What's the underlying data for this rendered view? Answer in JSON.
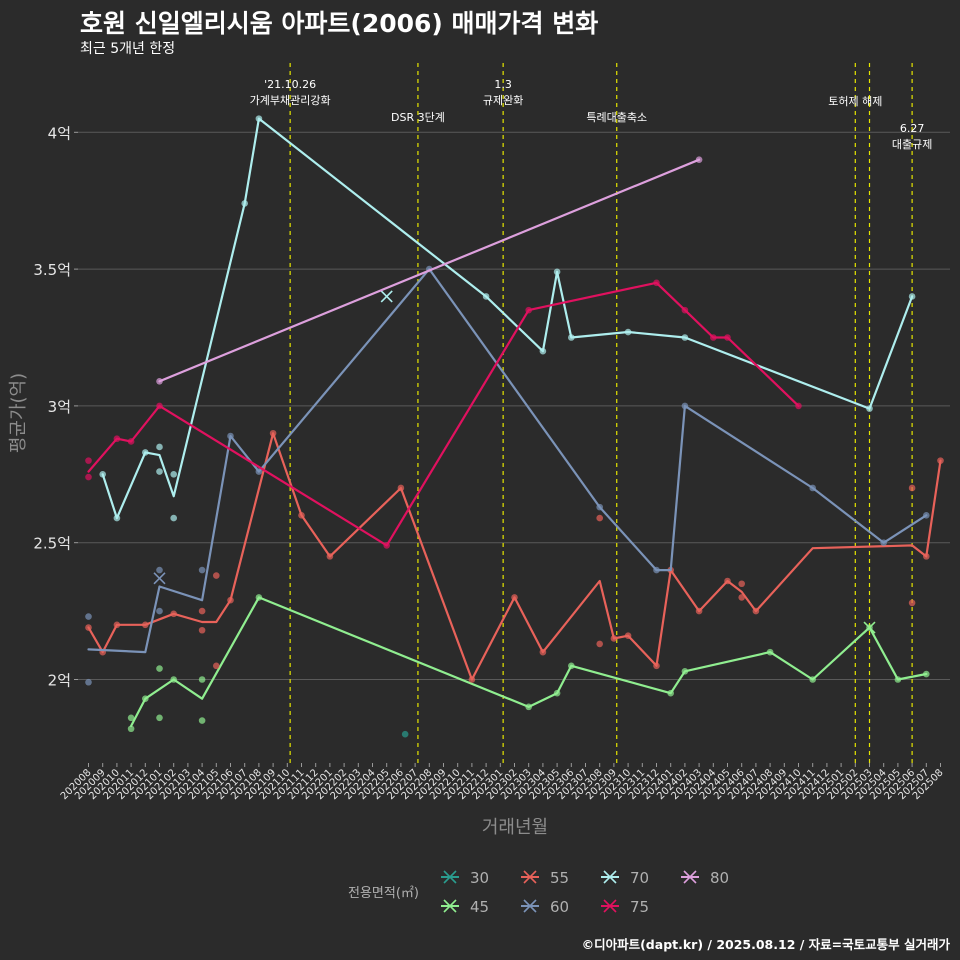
{
  "chart_data": {
    "type": "line",
    "title": "호원 신일엘리시움 아파트(2006) 매매가격 변화",
    "subtitle": "최근 5개년 한정",
    "xlabel": "거래년월",
    "ylabel": "평균가(억)",
    "caption": "©디아파트(dapt.kr) / 2025.08.12 / 자료=국토교통부 실거래가",
    "legend_title": "전용면적(㎡)",
    "legend_position": "bottom",
    "ylim": [
      1.68,
      4.25
    ],
    "yticks": [
      2,
      2.5,
      3,
      3.5,
      4
    ],
    "ytick_labels": [
      "2억",
      "2.5억",
      "3억",
      "3.5억",
      "4억"
    ],
    "x_categories": [
      "202008",
      "202009",
      "202010",
      "202011",
      "202012",
      "202101",
      "202102",
      "202103",
      "202104",
      "202105",
      "202106",
      "202107",
      "202108",
      "202109",
      "202110",
      "202111",
      "202112",
      "202201",
      "202202",
      "202203",
      "202204",
      "202205",
      "202206",
      "202207",
      "202208",
      "202209",
      "202210",
      "202211",
      "202212",
      "202301",
      "202302",
      "202303",
      "202304",
      "202305",
      "202306",
      "202307",
      "202308",
      "202309",
      "202310",
      "202311",
      "202312",
      "202401",
      "202402",
      "202403",
      "202404",
      "202405",
      "202406",
      "202407",
      "202408",
      "202409",
      "202410",
      "202411",
      "202412",
      "202501",
      "202502",
      "202503",
      "202504",
      "202505",
      "202506",
      "202507",
      "202508"
    ],
    "events": [
      {
        "x": 14.2,
        "label": "'21.10.26\n가계부채관리강화",
        "level": 0
      },
      {
        "x": 23.2,
        "label": "DSR 3단계",
        "level": 2
      },
      {
        "x": 29.2,
        "label": "1.3\n규제완화",
        "level": 0
      },
      {
        "x": 37.2,
        "label": "특례대출축소",
        "level": 2
      },
      {
        "x": 54.0,
        "label": "토허제 해제",
        "level": 1
      },
      {
        "x": 55.0,
        "label": "",
        "level": 1
      },
      {
        "x": 58.0,
        "label": "6.27\n대출규제",
        "level": 3
      }
    ],
    "series": [
      {
        "name": "30",
        "color": "#2a9d8f",
        "points": [
          {
            "x": 22.3,
            "y": 1.8
          }
        ],
        "line": []
      },
      {
        "name": "45",
        "color": "#90ee90",
        "points": [
          {
            "x": 3,
            "y": 1.86
          },
          {
            "x": 3,
            "y": 1.82
          },
          {
            "x": 4,
            "y": 1.93
          },
          {
            "x": 5,
            "y": 2.04
          },
          {
            "x": 5,
            "y": 1.86
          },
          {
            "x": 6,
            "y": 2.0
          },
          {
            "x": 8,
            "y": 2.0
          },
          {
            "x": 8,
            "y": 1.85
          },
          {
            "x": 12,
            "y": 2.3
          },
          {
            "x": 31,
            "y": 1.9
          },
          {
            "x": 33,
            "y": 1.95
          },
          {
            "x": 34,
            "y": 2.05
          },
          {
            "x": 41,
            "y": 1.95
          },
          {
            "x": 42,
            "y": 2.03
          },
          {
            "x": 48,
            "y": 2.1
          },
          {
            "x": 51,
            "y": 2.0
          },
          {
            "x": 55,
            "y": 2.19
          },
          {
            "x": 57,
            "y": 2.0
          },
          {
            "x": 59,
            "y": 2.02
          }
        ],
        "line": [
          {
            "x": 3,
            "y": 1.83
          },
          {
            "x": 4,
            "y": 1.93
          },
          {
            "x": 6,
            "y": 2.0
          },
          {
            "x": 8,
            "y": 1.93
          },
          {
            "x": 12,
            "y": 2.3
          },
          {
            "x": 31,
            "y": 1.9
          },
          {
            "x": 33,
            "y": 1.95
          },
          {
            "x": 34,
            "y": 2.05
          },
          {
            "x": 41,
            "y": 1.95
          },
          {
            "x": 42,
            "y": 2.03
          },
          {
            "x": 48,
            "y": 2.1
          },
          {
            "x": 51,
            "y": 2.0
          },
          {
            "x": 55,
            "y": 2.19
          },
          {
            "x": 57,
            "y": 2.0
          },
          {
            "x": 59,
            "y": 2.02
          }
        ],
        "cross": [
          {
            "x": 55,
            "y": 2.19
          }
        ]
      },
      {
        "name": "55",
        "color": "#e8625a",
        "points": [
          {
            "x": 0,
            "y": 2.19
          },
          {
            "x": 1,
            "y": 2.1
          },
          {
            "x": 2,
            "y": 2.2
          },
          {
            "x": 4,
            "y": 2.2
          },
          {
            "x": 6,
            "y": 2.24
          },
          {
            "x": 8,
            "y": 2.25
          },
          {
            "x": 8,
            "y": 2.18
          },
          {
            "x": 9,
            "y": 2.38
          },
          {
            "x": 9,
            "y": 2.05
          },
          {
            "x": 10,
            "y": 2.29
          },
          {
            "x": 13,
            "y": 2.9
          },
          {
            "x": 15,
            "y": 2.6
          },
          {
            "x": 17,
            "y": 2.45
          },
          {
            "x": 22,
            "y": 2.7
          },
          {
            "x": 27,
            "y": 2.0
          },
          {
            "x": 30,
            "y": 2.3
          },
          {
            "x": 32,
            "y": 2.1
          },
          {
            "x": 36,
            "y": 2.59
          },
          {
            "x": 36,
            "y": 2.13
          },
          {
            "x": 37,
            "y": 2.15
          },
          {
            "x": 38,
            "y": 2.16
          },
          {
            "x": 40,
            "y": 2.05
          },
          {
            "x": 41,
            "y": 2.4
          },
          {
            "x": 43,
            "y": 2.25
          },
          {
            "x": 45,
            "y": 2.36
          },
          {
            "x": 46,
            "y": 2.35
          },
          {
            "x": 46,
            "y": 2.3
          },
          {
            "x": 47,
            "y": 2.25
          },
          {
            "x": 58,
            "y": 2.7
          },
          {
            "x": 58,
            "y": 2.28
          },
          {
            "x": 59,
            "y": 2.45
          },
          {
            "x": 60,
            "y": 2.8
          }
        ],
        "line": [
          {
            "x": 0,
            "y": 2.19
          },
          {
            "x": 1,
            "y": 2.1
          },
          {
            "x": 2,
            "y": 2.2
          },
          {
            "x": 4,
            "y": 2.2
          },
          {
            "x": 6,
            "y": 2.24
          },
          {
            "x": 8,
            "y": 2.21
          },
          {
            "x": 9,
            "y": 2.21
          },
          {
            "x": 10,
            "y": 2.29
          },
          {
            "x": 13,
            "y": 2.9
          },
          {
            "x": 15,
            "y": 2.6
          },
          {
            "x": 17,
            "y": 2.45
          },
          {
            "x": 22,
            "y": 2.7
          },
          {
            "x": 27,
            "y": 2.0
          },
          {
            "x": 30,
            "y": 2.3
          },
          {
            "x": 32,
            "y": 2.1
          },
          {
            "x": 36,
            "y": 2.36
          },
          {
            "x": 37,
            "y": 2.15
          },
          {
            "x": 38,
            "y": 2.16
          },
          {
            "x": 40,
            "y": 2.05
          },
          {
            "x": 41,
            "y": 2.4
          },
          {
            "x": 43,
            "y": 2.25
          },
          {
            "x": 45,
            "y": 2.36
          },
          {
            "x": 46,
            "y": 2.32
          },
          {
            "x": 47,
            "y": 2.25
          },
          {
            "x": 51,
            "y": 2.48
          },
          {
            "x": 58,
            "y": 2.49
          },
          {
            "x": 59,
            "y": 2.45
          },
          {
            "x": 60,
            "y": 2.8
          }
        ]
      },
      {
        "name": "60",
        "color": "#7b93b8",
        "points": [
          {
            "x": 0,
            "y": 2.23
          },
          {
            "x": 0,
            "y": 1.99
          },
          {
            "x": 5,
            "y": 2.4
          },
          {
            "x": 5,
            "y": 2.25
          },
          {
            "x": 8,
            "y": 2.4
          },
          {
            "x": 10,
            "y": 2.89
          },
          {
            "x": 12,
            "y": 2.76
          },
          {
            "x": 24,
            "y": 3.5
          },
          {
            "x": 36,
            "y": 2.63
          },
          {
            "x": 40,
            "y": 2.4
          },
          {
            "x": 42,
            "y": 3.0
          },
          {
            "x": 51,
            "y": 2.7
          },
          {
            "x": 56,
            "y": 2.5
          },
          {
            "x": 59,
            "y": 2.6
          }
        ],
        "line": [
          {
            "x": 0,
            "y": 2.11
          },
          {
            "x": 4,
            "y": 2.1
          },
          {
            "x": 5,
            "y": 2.34
          },
          {
            "x": 8,
            "y": 2.29
          },
          {
            "x": 10,
            "y": 2.89
          },
          {
            "x": 12,
            "y": 2.76
          },
          {
            "x": 24,
            "y": 3.5
          },
          {
            "x": 36,
            "y": 2.63
          },
          {
            "x": 40,
            "y": 2.4
          },
          {
            "x": 41,
            "y": 2.4
          },
          {
            "x": 42,
            "y": 3.0
          },
          {
            "x": 51,
            "y": 2.7
          },
          {
            "x": 56,
            "y": 2.5
          },
          {
            "x": 59,
            "y": 2.6
          }
        ],
        "cross": [
          {
            "x": 5,
            "y": 2.37
          }
        ]
      },
      {
        "name": "70",
        "color": "#aeeeee",
        "points": [
          {
            "x": 1,
            "y": 2.75
          },
          {
            "x": 2,
            "y": 2.59
          },
          {
            "x": 4,
            "y": 2.83
          },
          {
            "x": 5,
            "y": 2.85
          },
          {
            "x": 5,
            "y": 2.76
          },
          {
            "x": 6,
            "y": 2.75
          },
          {
            "x": 6,
            "y": 2.59
          },
          {
            "x": 11,
            "y": 3.74
          },
          {
            "x": 12,
            "y": 4.05
          },
          {
            "x": 28,
            "y": 3.4
          },
          {
            "x": 32,
            "y": 3.2
          },
          {
            "x": 33,
            "y": 3.49
          },
          {
            "x": 34,
            "y": 3.25
          },
          {
            "x": 38,
            "y": 3.27
          },
          {
            "x": 42,
            "y": 3.25
          },
          {
            "x": 55,
            "y": 2.99
          },
          {
            "x": 58,
            "y": 3.4
          }
        ],
        "line": [
          {
            "x": 1,
            "y": 2.75
          },
          {
            "x": 2,
            "y": 2.59
          },
          {
            "x": 4,
            "y": 2.83
          },
          {
            "x": 5,
            "y": 2.82
          },
          {
            "x": 6,
            "y": 2.67
          },
          {
            "x": 11,
            "y": 3.74
          },
          {
            "x": 12,
            "y": 4.05
          },
          {
            "x": 28,
            "y": 3.4
          },
          {
            "x": 32,
            "y": 3.2
          },
          {
            "x": 33,
            "y": 3.49
          },
          {
            "x": 34,
            "y": 3.25
          },
          {
            "x": 38,
            "y": 3.27
          },
          {
            "x": 42,
            "y": 3.25
          },
          {
            "x": 55,
            "y": 2.99
          },
          {
            "x": 58,
            "y": 3.4
          }
        ],
        "cross": [
          {
            "x": 21,
            "y": 3.4
          }
        ]
      },
      {
        "name": "75",
        "color": "#e0115f",
        "points": [
          {
            "x": 0,
            "y": 2.8
          },
          {
            "x": 0,
            "y": 2.74
          },
          {
            "x": 2,
            "y": 2.88
          },
          {
            "x": 3,
            "y": 2.87
          },
          {
            "x": 5,
            "y": 3.0
          },
          {
            "x": 21,
            "y": 2.49
          },
          {
            "x": 31,
            "y": 3.35
          },
          {
            "x": 40,
            "y": 3.45
          },
          {
            "x": 42,
            "y": 3.35
          },
          {
            "x": 44,
            "y": 3.25
          },
          {
            "x": 45,
            "y": 3.25
          },
          {
            "x": 50,
            "y": 3.0
          }
        ],
        "line": [
          {
            "x": 0,
            "y": 2.76
          },
          {
            "x": 2,
            "y": 2.88
          },
          {
            "x": 3,
            "y": 2.87
          },
          {
            "x": 5,
            "y": 3.0
          },
          {
            "x": 21,
            "y": 2.49
          },
          {
            "x": 31,
            "y": 3.35
          },
          {
            "x": 40,
            "y": 3.45
          },
          {
            "x": 42,
            "y": 3.35
          },
          {
            "x": 44,
            "y": 3.25
          },
          {
            "x": 45,
            "y": 3.25
          },
          {
            "x": 50,
            "y": 3.0
          }
        ]
      },
      {
        "name": "80",
        "color": "#dda0dd",
        "points": [
          {
            "x": 5,
            "y": 3.09
          },
          {
            "x": 43,
            "y": 3.9
          }
        ],
        "line": [
          {
            "x": 5,
            "y": 3.09
          },
          {
            "x": 43,
            "y": 3.9
          }
        ]
      }
    ],
    "legend_order": [
      "30",
      "55",
      "70",
      "80",
      "45",
      "60",
      "75"
    ]
  }
}
